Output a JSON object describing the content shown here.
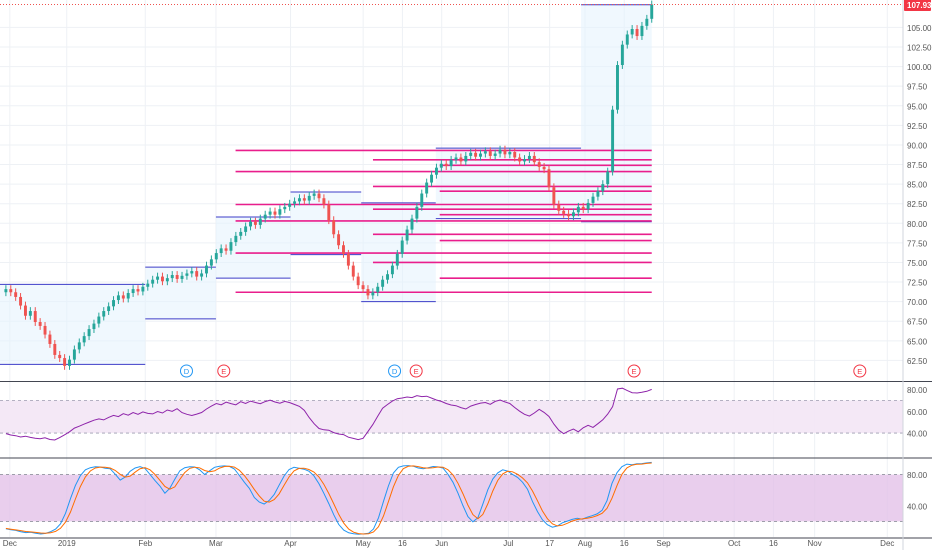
{
  "chart_data": {
    "type": "candlestick",
    "main_panel": {
      "price_axis": {
        "ylim": [
          60.0,
          108.5
        ],
        "ticks": [
          "62.50",
          "65.00",
          "67.50",
          "70.00",
          "72.50",
          "75.00",
          "77.50",
          "80.00",
          "82.50",
          "85.00",
          "87.50",
          "90.00",
          "92.50",
          "95.00",
          "97.50",
          "100.00",
          "102.50",
          "105.00"
        ],
        "last_price_label": "107.93",
        "last_price": 107.93
      },
      "ohlc_series": {
        "name": "",
        "closes": [
          71.6,
          71.2,
          70.6,
          69.5,
          68.2,
          68.8,
          67.4,
          66.9,
          65.8,
          64.6,
          63.2,
          62.8,
          61.8,
          62.6,
          63.9,
          64.8,
          65.6,
          66.5,
          67.2,
          68.1,
          68.8,
          69.4,
          70.2,
          70.8,
          70.4,
          71.1,
          71.6,
          71.3,
          71.9,
          72.3,
          72.8,
          73.2,
          72.6,
          73.0,
          73.4,
          72.9,
          73.3,
          73.6,
          73.9,
          73.2,
          73.6,
          74.6,
          75.4,
          76.2,
          76.8,
          76.5,
          77.6,
          78.4,
          78.9,
          79.6,
          80.2,
          79.8,
          80.6,
          81.1,
          81.5,
          81.1,
          81.8,
          82.1,
          82.5,
          82.8,
          83.2,
          82.9,
          83.5,
          83.8,
          83.2,
          82.4,
          80.4,
          78.6,
          77.2,
          76.1,
          74.6,
          73.2,
          72.1,
          71.6,
          70.8,
          71.2,
          71.9,
          72.8,
          73.5,
          74.6,
          76.1,
          77.8,
          79.2,
          80.6,
          82.1,
          83.8,
          85.2,
          86.2,
          87.1,
          87.6,
          87.3,
          88.1,
          88.4,
          87.9,
          88.6,
          89.0,
          88.5,
          88.9,
          89.2,
          88.6,
          88.9,
          89.4,
          88.8,
          89.1,
          88.4,
          87.9,
          88.2,
          88.6,
          87.8,
          87.2,
          86.9,
          84.6,
          82.4,
          81.6,
          81.2,
          80.9,
          81.4,
          82.1,
          81.8,
          82.6,
          83.4,
          84.1,
          85.0,
          86.6,
          94.5,
          100.2,
          102.8,
          104.1,
          104.8,
          103.9,
          105.2,
          106.1,
          107.93
        ]
      },
      "candle_start": 1.5,
      "candle_end": 166,
      "events": [
        {
          "label": "D",
          "t": 47.5,
          "color": "#2196f3"
        },
        {
          "label": "E",
          "t": 57.0,
          "color": "#f23645"
        },
        {
          "label": "D",
          "t": 100.5,
          "color": "#2196f3"
        },
        {
          "label": "E",
          "t": 106.0,
          "color": "#f23645"
        },
        {
          "label": "E",
          "t": 161.5,
          "color": "#f23645"
        },
        {
          "label": "E",
          "t": 219.0,
          "color": "#f23645"
        }
      ],
      "volume_profile_levels": [
        89.3,
        88.1,
        87.4,
        86.6,
        84.7,
        84.1,
        82.4,
        81.8,
        81.1,
        80.3,
        78.6,
        77.8,
        76.2,
        75.0,
        73.0,
        71.2
      ],
      "price_channel": [
        {
          "t0": 0,
          "t1": 37,
          "low": 62.0,
          "high": 72.2
        },
        {
          "t0": 37,
          "t1": 55,
          "low": 67.8,
          "high": 74.4
        },
        {
          "t0": 55,
          "t1": 74,
          "low": 73.0,
          "high": 80.8
        },
        {
          "t0": 74,
          "t1": 92,
          "low": 76.0,
          "high": 84.0
        },
        {
          "t0": 92,
          "t1": 111,
          "low": 70.0,
          "high": 82.6
        },
        {
          "t0": 111,
          "t1": 148,
          "low": 80.6,
          "high": 89.6
        },
        {
          "t0": 148,
          "t1": 166,
          "low": 80.2,
          "high": 107.9
        }
      ]
    },
    "rsi_panel": {
      "ylim": [
        18,
        86
      ],
      "ticks": [
        "40.00",
        "60.00",
        "80.00"
      ],
      "band": [
        40,
        70
      ],
      "values": [
        39.5,
        38.2,
        37.6,
        36.4,
        37.1,
        36.0,
        35.2,
        34.8,
        35.6,
        34.1,
        33.6,
        35.8,
        38.4,
        41.2,
        44.6,
        46.3,
        48.2,
        50.1,
        51.8,
        53.0,
        52.1,
        54.4,
        56.2,
        55.1,
        57.8,
        56.4,
        58.9,
        57.2,
        59.4,
        58.1,
        57.6,
        59.8,
        58.4,
        61.2,
        60.0,
        62.4,
        58.8,
        57.2,
        56.1,
        57.4,
        58.9,
        62.1,
        64.8,
        67.2,
        66.0,
        68.4,
        67.1,
        66.0,
        68.8,
        67.2,
        69.4,
        68.1,
        67.0,
        68.9,
        70.2,
        68.5,
        67.4,
        69.1,
        68.0,
        66.2,
        64.5,
        60.8,
        54.2,
        48.6,
        44.2,
        43.0,
        42.6,
        40.4,
        39.1,
        38.6,
        36.2,
        35.1,
        34.0,
        35.2,
        41.5,
        47.8,
        55.4,
        62.8,
        66.2,
        69.4,
        71.6,
        72.2,
        73.1,
        72.6,
        74.4,
        73.5,
        73.9,
        72.1,
        70.4,
        69.1,
        67.2,
        65.8,
        65.1,
        63.4,
        62.1,
        64.8,
        66.2,
        67.5,
        68.1,
        66.4,
        69.1,
        70.4,
        68.6,
        67.2,
        63.5,
        60.1,
        57.2,
        55.6,
        58.4,
        61.8,
        59.0,
        55.2,
        48.2,
        42.6,
        39.4,
        41.8,
        43.6,
        41.2,
        44.8,
        47.1,
        45.2,
        48.6,
        52.2,
        57.4,
        64.2,
        80.5,
        81.2,
        79.0,
        77.1,
        76.8,
        77.5,
        78.4,
        80.1
      ]
    },
    "stoch_panel": {
      "ylim": [
        0,
        100
      ],
      "ticks": [
        "40.00",
        "80.00"
      ],
      "band": [
        20,
        80
      ],
      "series": [
        {
          "name": "",
          "color": "#2196f3",
          "values": [
            10.5,
            9.2,
            8.4,
            6.8,
            5.6,
            6.2,
            4.8,
            3.9,
            4.6,
            6.8,
            10.1,
            16.8,
            30.4,
            49.2,
            66.2,
            78.8,
            86.2,
            88.9,
            90.1,
            89.8,
            88.2,
            87.4,
            80.5,
            72.9,
            76.8,
            84.2,
            88.4,
            90.1,
            87.9,
            80.2,
            72.5,
            65.4,
            56.2,
            62.4,
            74.1,
            84.9,
            88.8,
            90.1,
            89.7,
            86.2,
            80.1,
            84.9,
            89.4,
            90.6,
            91.1,
            90.5,
            87.2,
            78.8,
            70.1,
            62.4,
            50.6,
            44.8,
            42.3,
            46.9,
            54.5,
            66.4,
            78.2,
            86.5,
            89.4,
            88.2,
            86.9,
            84.4,
            78.5,
            68.4,
            56.2,
            42.8,
            28.4,
            16.1,
            8.8,
            5.4,
            4.2,
            3.6,
            4.0,
            4.9,
            10.2,
            24.6,
            45.8,
            65.4,
            82.1,
            89.4,
            91.2,
            91.6,
            90.8,
            88.4,
            87.6,
            88.9,
            90.4,
            89.9,
            88.2,
            80.4,
            70.1,
            56.2,
            40.4,
            26.2,
            19.5,
            24.8,
            42.1,
            60.5,
            74.4,
            82.2,
            86.1,
            84.5,
            80.2,
            76.4,
            70.1,
            61.3,
            45.4,
            32.6,
            22.2,
            15.8,
            12.6,
            14.1,
            18.2,
            20.4,
            22.6,
            24.1,
            22.8,
            25.4,
            27.3,
            29.6,
            34.2,
            46.5,
            68.8,
            82.4,
            90.1,
            93.4,
            92.6,
            93.8,
            94.1,
            95.0,
            95.6
          ]
        },
        {
          "name": "",
          "color": "#ff6d00",
          "values": [
            11.0,
            10.0,
            9.1,
            8.2,
            7.0,
            6.6,
            5.9,
            5.1,
            4.8,
            5.4,
            7.2,
            11.2,
            19.1,
            32.1,
            48.7,
            64.7,
            77.1,
            84.6,
            88.4,
            89.6,
            89.4,
            88.5,
            85.4,
            80.3,
            76.8,
            78.0,
            83.1,
            87.6,
            88.8,
            86.1,
            80.2,
            72.7,
            64.7,
            61.3,
            64.2,
            73.8,
            82.6,
            88.0,
            89.5,
            88.7,
            85.3,
            83.7,
            84.8,
            88.3,
            90.4,
            90.7,
            89.6,
            85.5,
            78.7,
            70.4,
            61.0,
            52.6,
            45.9,
            44.7,
            47.9,
            55.3,
            66.4,
            77.0,
            84.7,
            88.0,
            88.2,
            86.5,
            83.3,
            77.1,
            67.7,
            55.8,
            42.5,
            29.1,
            17.8,
            10.1,
            6.1,
            4.4,
            3.9,
            4.2,
            6.4,
            13.2,
            26.9,
            45.3,
            64.4,
            79.0,
            87.6,
            90.7,
            91.2,
            90.3,
            88.9,
            88.3,
            88.9,
            89.7,
            89.5,
            86.2,
            79.6,
            68.9,
            55.6,
            40.9,
            28.7,
            23.5,
            28.8,
            42.5,
            59.0,
            72.4,
            80.9,
            84.3,
            83.6,
            80.4,
            75.6,
            69.3,
            59.0,
            46.4,
            33.4,
            23.5,
            16.9,
            14.2,
            15.0,
            17.6,
            20.4,
            22.4,
            23.2,
            24.1,
            25.2,
            27.4,
            30.4,
            36.8,
            49.8,
            65.9,
            80.4,
            88.6,
            92.0,
            93.3,
            93.5,
            94.3,
            94.9
          ]
        }
      ]
    },
    "time_axis": {
      "ticks": [
        {
          "label": "Dec",
          "t": 2.5
        },
        {
          "label": "2019",
          "t": 17.0
        },
        {
          "label": "Feb",
          "t": 37.0
        },
        {
          "label": "Mar",
          "t": 55.0
        },
        {
          "label": "Apr",
          "t": 74.0
        },
        {
          "label": "May",
          "t": 92.5
        },
        {
          "label": "16",
          "t": 102.5
        },
        {
          "label": "Jun",
          "t": 112.5
        },
        {
          "label": "Jul",
          "t": 129.5
        },
        {
          "label": "17",
          "t": 140.0
        },
        {
          "label": "Aug",
          "t": 149.0
        },
        {
          "label": "16",
          "t": 159.0
        },
        {
          "label": "Sep",
          "t": 169.0
        },
        {
          "label": "Oct",
          "t": 187.0
        },
        {
          "label": "16",
          "t": 197.0
        },
        {
          "label": "Nov",
          "t": 207.5
        },
        {
          "label": "Dec",
          "t": 226.0
        }
      ]
    },
    "grid": true
  }
}
